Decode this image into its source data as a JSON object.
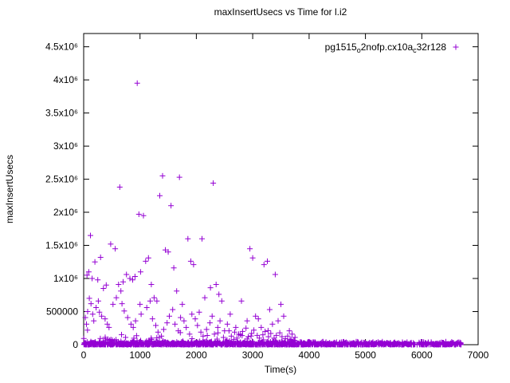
{
  "chart_data": {
    "type": "scatter",
    "title": "maxInsertUsecs vs Time for l.i2",
    "xlabel": "Time(s)",
    "ylabel": "maxInsertUsecs",
    "xlim": [
      0,
      7000
    ],
    "ylim": [
      0,
      4700000
    ],
    "grid": false,
    "legend": {
      "label": "pg1515o2nofp.cx10ac32r128",
      "position": "top-center-inside",
      "segments": [
        {
          "text": "pg1515",
          "sub": false
        },
        {
          "text": "o",
          "sub": true
        },
        {
          "text": "2nofp.cx10a",
          "sub": false
        },
        {
          "text": "c",
          "sub": true
        },
        {
          "text": "32r128",
          "sub": false
        }
      ]
    },
    "marker": {
      "shape": "plus",
      "color": "#9400d3",
      "size": 3.5
    },
    "xticks": {
      "values": [
        0,
        1000,
        2000,
        3000,
        4000,
        5000,
        6000,
        7000
      ],
      "labels": [
        "0",
        "1000",
        "2000",
        "3000",
        "4000",
        "5000",
        "6000",
        "7000"
      ]
    },
    "yticks": {
      "values": [
        0,
        500000,
        1000000,
        1500000,
        2000000,
        2500000,
        3000000,
        3500000,
        4000000,
        4500000
      ],
      "labels": [
        "0",
        "500000",
        "1x10⁶",
        "1.5x10⁶",
        "2x10⁶",
        "2.5x10⁶",
        "3x10⁶",
        "3.5x10⁶",
        "4x10⁶",
        "4.5x10⁶"
      ]
    },
    "series": [
      {
        "name": "pg1515o2nofp.cx10ac32r128",
        "points": [
          [
            30,
            410000
          ],
          [
            50,
            310000
          ],
          [
            60,
            1050000
          ],
          [
            70,
            500000
          ],
          [
            90,
            1100000
          ],
          [
            100,
            700000
          ],
          [
            120,
            1650000
          ],
          [
            130,
            620000
          ],
          [
            150,
            1000000
          ],
          [
            160,
            460000
          ],
          [
            180,
            360000
          ],
          [
            200,
            1250000
          ],
          [
            220,
            560000
          ],
          [
            250,
            980000
          ],
          [
            260,
            660000
          ],
          [
            280,
            490000
          ],
          [
            300,
            1320000
          ],
          [
            320,
            430000
          ],
          [
            350,
            850000
          ],
          [
            380,
            390000
          ],
          [
            400,
            900000
          ],
          [
            420,
            310000
          ],
          [
            450,
            260000
          ],
          [
            480,
            1520000
          ],
          [
            520,
            610000
          ],
          [
            560,
            1450000
          ],
          [
            580,
            710000
          ],
          [
            620,
            910000
          ],
          [
            640,
            2380000
          ],
          [
            660,
            810000
          ],
          [
            680,
            620000
          ],
          [
            700,
            950000
          ],
          [
            720,
            510000
          ],
          [
            760,
            1060000
          ],
          [
            780,
            410000
          ],
          [
            820,
            1000000
          ],
          [
            840,
            310000
          ],
          [
            870,
            980000
          ],
          [
            880,
            260000
          ],
          [
            910,
            1030000
          ],
          [
            920,
            360000
          ],
          [
            950,
            3950000
          ],
          [
            980,
            1970000
          ],
          [
            1000,
            610000
          ],
          [
            1010,
            1100000
          ],
          [
            1020,
            460000
          ],
          [
            1060,
            1950000
          ],
          [
            1100,
            1260000
          ],
          [
            1120,
            560000
          ],
          [
            1150,
            1310000
          ],
          [
            1180,
            660000
          ],
          [
            1200,
            910000
          ],
          [
            1220,
            390000
          ],
          [
            1250,
            710000
          ],
          [
            1280,
            290000
          ],
          [
            1300,
            660000
          ],
          [
            1320,
            190000
          ],
          [
            1350,
            2250000
          ],
          [
            1380,
            130000
          ],
          [
            1400,
            2550000
          ],
          [
            1420,
            230000
          ],
          [
            1450,
            1430000
          ],
          [
            1480,
            330000
          ],
          [
            1500,
            1400000
          ],
          [
            1520,
            430000
          ],
          [
            1550,
            2100000
          ],
          [
            1580,
            530000
          ],
          [
            1600,
            1160000
          ],
          [
            1620,
            310000
          ],
          [
            1650,
            810000
          ],
          [
            1680,
            210000
          ],
          [
            1700,
            2530000
          ],
          [
            1720,
            410000
          ],
          [
            1750,
            610000
          ],
          [
            1780,
            360000
          ],
          [
            1820,
            260000
          ],
          [
            1850,
            1600000
          ],
          [
            1880,
            160000
          ],
          [
            1900,
            1260000
          ],
          [
            1920,
            460000
          ],
          [
            1950,
            1210000
          ],
          [
            1980,
            390000
          ],
          [
            2020,
            290000
          ],
          [
            2050,
            490000
          ],
          [
            2080,
            190000
          ],
          [
            2100,
            1600000
          ],
          [
            2120,
            130000
          ],
          [
            2150,
            710000
          ],
          [
            2180,
            230000
          ],
          [
            2240,
            330000
          ],
          [
            2250,
            860000
          ],
          [
            2280,
            430000
          ],
          [
            2300,
            2440000
          ],
          [
            2320,
            160000
          ],
          [
            2350,
            910000
          ],
          [
            2380,
            260000
          ],
          [
            2400,
            760000
          ],
          [
            2420,
            360000
          ],
          [
            2450,
            660000
          ],
          [
            2480,
            110000
          ],
          [
            2500,
            210000
          ],
          [
            2550,
            310000
          ],
          [
            2580,
            210000
          ],
          [
            2600,
            460000
          ],
          [
            2620,
            130000
          ],
          [
            2680,
            190000
          ],
          [
            2700,
            260000
          ],
          [
            2720,
            100000
          ],
          [
            2750,
            160000
          ],
          [
            2780,
            150000
          ],
          [
            2800,
            660000
          ],
          [
            2820,
            200000
          ],
          [
            2880,
            250000
          ],
          [
            2900,
            360000
          ],
          [
            2920,
            120000
          ],
          [
            2950,
            1450000
          ],
          [
            2980,
            170000
          ],
          [
            3000,
            1310000
          ],
          [
            3020,
            220000
          ],
          [
            3050,
            430000
          ],
          [
            3080,
            140000
          ],
          [
            3100,
            390000
          ],
          [
            3120,
            100000
          ],
          [
            3150,
            260000
          ],
          [
            3180,
            150000
          ],
          [
            3200,
            1210000
          ],
          [
            3220,
            200000
          ],
          [
            3260,
            1260000
          ],
          [
            3280,
            120000
          ],
          [
            3300,
            530000
          ],
          [
            3320,
            170000
          ],
          [
            3350,
            310000
          ],
          [
            3380,
            100000
          ],
          [
            3400,
            1060000
          ],
          [
            3420,
            140000
          ],
          [
            3450,
            360000
          ],
          [
            3480,
            180000
          ],
          [
            3500,
            610000
          ],
          [
            3520,
            120000
          ],
          [
            3550,
            430000
          ],
          [
            3580,
            90000
          ],
          [
            3620,
            130000
          ],
          [
            3650,
            210000
          ],
          [
            3680,
            80000
          ],
          [
            3700,
            160000
          ],
          [
            3720,
            70000
          ],
          [
            3750,
            110000
          ]
        ]
      }
    ],
    "baseline_band": {
      "description": "dense band of points at y near 0 across the full x range",
      "x_min": 0,
      "x_max": 6700,
      "y_min": 0,
      "y_max": 50000,
      "approx_count": 1300
    },
    "low_scatter_band": {
      "description": "haze of small values above the baseline for x < 3800",
      "x_min": 0,
      "x_max": 3800,
      "y_min": 0,
      "y_max": 250000,
      "approx_count": 260
    }
  }
}
